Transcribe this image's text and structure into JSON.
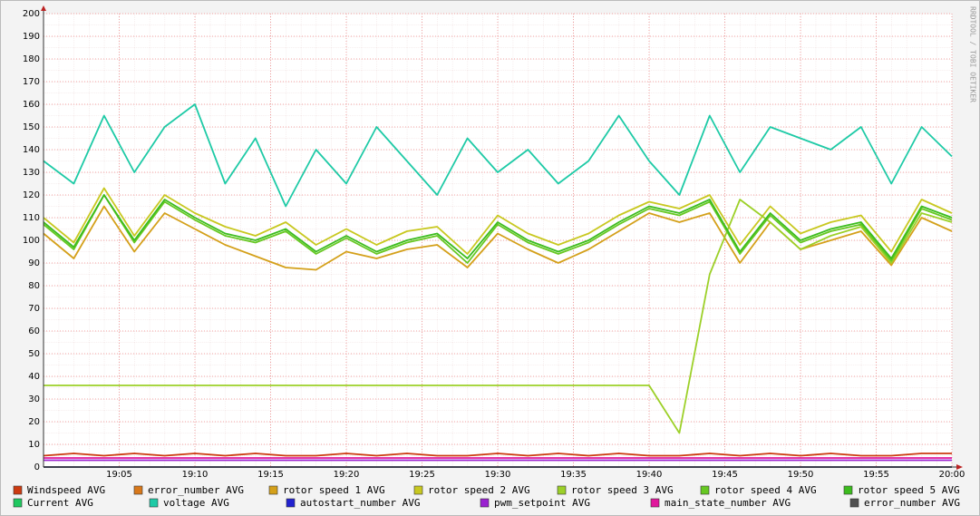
{
  "chart_data": {
    "type": "line",
    "watermark": "RRDTOOL / TOBI OETIKER",
    "x": [
      "19:00",
      "19:02",
      "19:04",
      "19:06",
      "19:08",
      "19:10",
      "19:12",
      "19:14",
      "19:16",
      "19:18",
      "19:20",
      "19:22",
      "19:24",
      "19:26",
      "19:28",
      "19:30",
      "19:32",
      "19:34",
      "19:36",
      "19:38",
      "19:40",
      "19:42",
      "19:44",
      "19:46",
      "19:48",
      "19:50",
      "19:52",
      "19:54",
      "19:56",
      "19:58",
      "20:00"
    ],
    "xlim": [
      "19:00",
      "20:00"
    ],
    "xticks": [
      "19:05",
      "19:10",
      "19:15",
      "19:20",
      "19:25",
      "19:30",
      "19:35",
      "19:40",
      "19:45",
      "19:50",
      "19:55",
      "20:00"
    ],
    "ylim": [
      0,
      200
    ],
    "yticks": [
      0,
      10,
      20,
      30,
      40,
      50,
      60,
      70,
      80,
      90,
      100,
      110,
      120,
      130,
      140,
      150,
      160,
      170,
      180,
      190,
      200
    ],
    "grid": true,
    "series": [
      {
        "name": "Windspeed AVG",
        "color": "#cc3a10",
        "values": [
          5,
          6,
          5,
          6,
          5,
          6,
          5,
          6,
          5,
          5,
          6,
          5,
          6,
          5,
          5,
          6,
          5,
          6,
          5,
          6,
          5,
          5,
          6,
          5,
          6,
          5,
          6,
          5,
          5,
          6,
          6
        ]
      },
      {
        "name": "error_number AVG",
        "color": "#d8781a",
        "values": [
          0,
          0,
          0,
          0,
          0,
          0,
          0,
          0,
          0,
          0,
          0,
          0,
          0,
          0,
          0,
          0,
          0,
          0,
          0,
          0,
          0,
          0,
          0,
          0,
          0,
          0,
          0,
          0,
          0,
          0,
          0
        ]
      },
      {
        "name": "rotor speed 1 AVG",
        "color": "#d4a01a",
        "values": [
          103,
          92,
          115,
          95,
          112,
          105,
          98,
          93,
          88,
          87,
          95,
          92,
          96,
          98,
          88,
          103,
          96,
          90,
          96,
          104,
          112,
          108,
          112,
          90,
          108,
          96,
          100,
          104,
          89,
          110,
          104
        ]
      },
      {
        "name": "rotor speed 2 AVG",
        "color": "#c8c820",
        "values": [
          110,
          99,
          123,
          102,
          120,
          112,
          106,
          102,
          108,
          98,
          105,
          98,
          104,
          106,
          94,
          111,
          103,
          98,
          103,
          111,
          117,
          114,
          120,
          98,
          115,
          103,
          108,
          111,
          95,
          118,
          112
        ]
      },
      {
        "name": "rotor speed 3 AVG",
        "color": "#9cd028",
        "values": [
          36,
          36,
          36,
          36,
          36,
          36,
          36,
          36,
          36,
          36,
          36,
          36,
          36,
          36,
          36,
          36,
          36,
          36,
          36,
          36,
          36,
          15,
          85,
          118,
          108,
          96,
          102,
          106,
          90,
          112,
          108
        ]
      },
      {
        "name": "rotor speed 4 AVG",
        "color": "#66c822",
        "values": [
          107,
          96,
          120,
          99,
          117,
          109,
          102,
          99,
          104,
          94,
          101,
          94,
          99,
          102,
          90,
          107,
          99,
          94,
          99,
          107,
          114,
          111,
          117,
          94,
          111,
          99,
          104,
          107,
          91,
          114,
          109
        ]
      },
      {
        "name": "rotor speed 5 AVG",
        "color": "#3cbc1e",
        "values": [
          108,
          97,
          120,
          100,
          118,
          110,
          103,
          100,
          105,
          95,
          102,
          95,
          100,
          103,
          92,
          108,
          100,
          95,
          100,
          108,
          115,
          112,
          118,
          95,
          112,
          100,
          105,
          108,
          92,
          115,
          110
        ]
      },
      {
        "name": "Current AVG",
        "color": "#20c860",
        "values": [
          0,
          0,
          0,
          0,
          0,
          0,
          0,
          0,
          0,
          0,
          0,
          0,
          0,
          0,
          0,
          0,
          0,
          0,
          0,
          0,
          0,
          0,
          0,
          0,
          0,
          0,
          0,
          0,
          0,
          0,
          0
        ]
      },
      {
        "name": "voltage AVG",
        "color": "#1ecaa6",
        "values": [
          135,
          125,
          155,
          130,
          150,
          160,
          125,
          145,
          115,
          140,
          125,
          150,
          135,
          120,
          145,
          130,
          140,
          125,
          135,
          155,
          135,
          120,
          155,
          130,
          150,
          145,
          140,
          150,
          125,
          150,
          137
        ]
      },
      {
        "name": "autostart_number AVG",
        "color": "#2222d0",
        "values": [
          0,
          0,
          0,
          0,
          0,
          0,
          0,
          0,
          0,
          0,
          0,
          0,
          0,
          0,
          0,
          0,
          0,
          0,
          0,
          0,
          0,
          0,
          0,
          0,
          0,
          0,
          0,
          0,
          0,
          0,
          0
        ]
      },
      {
        "name": "pwm_setpoint AVG",
        "color": "#9a22d0",
        "values": [
          3,
          3,
          3,
          3,
          3,
          3,
          3,
          3,
          3,
          3,
          3,
          3,
          3,
          3,
          3,
          3,
          3,
          3,
          3,
          3,
          3,
          3,
          3,
          3,
          3,
          3,
          3,
          3,
          3,
          3,
          3
        ]
      },
      {
        "name": "main_state_number AVG",
        "color": "#e0189c",
        "values": [
          4,
          4,
          4,
          4,
          4,
          4,
          4,
          4,
          4,
          4,
          4,
          4,
          4,
          4,
          4,
          4,
          4,
          4,
          4,
          4,
          4,
          4,
          4,
          4,
          4,
          4,
          4,
          4,
          4,
          4,
          4
        ]
      },
      {
        "name": "error_number AVG",
        "color": "#505050",
        "values": [
          0,
          0,
          0,
          0,
          0,
          0,
          0,
          0,
          0,
          0,
          0,
          0,
          0,
          0,
          0,
          0,
          0,
          0,
          0,
          0,
          0,
          0,
          0,
          0,
          0,
          0,
          0,
          0,
          0,
          0,
          0
        ]
      }
    ]
  }
}
